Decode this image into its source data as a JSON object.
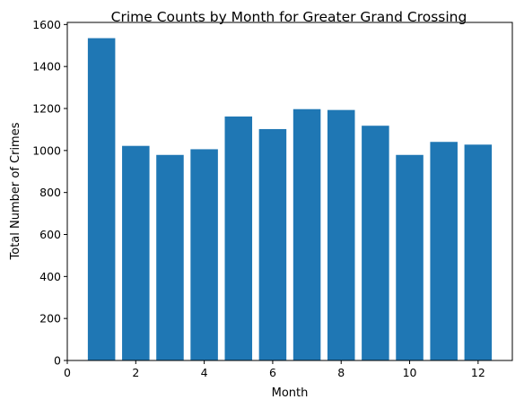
{
  "chart_data": {
    "type": "bar",
    "title": "Crime Counts by Month for Greater Grand Crossing",
    "xlabel": "Month",
    "ylabel": "Total Number of Crimes",
    "x": [
      1,
      2,
      3,
      4,
      5,
      6,
      7,
      8,
      9,
      10,
      11,
      12
    ],
    "values": [
      1535,
      1022,
      979,
      1006,
      1162,
      1102,
      1197,
      1193,
      1118,
      979,
      1041,
      1028
    ],
    "xlim": [
      0,
      13
    ],
    "ylim": [
      0,
      1610
    ],
    "xticks": [
      0,
      2,
      4,
      6,
      8,
      10,
      12
    ],
    "yticks": [
      0,
      200,
      400,
      600,
      800,
      1000,
      1200,
      1400,
      1600
    ],
    "bar_width": 0.8,
    "bar_color": "#1f77b4",
    "grid": false,
    "legend": "none"
  }
}
